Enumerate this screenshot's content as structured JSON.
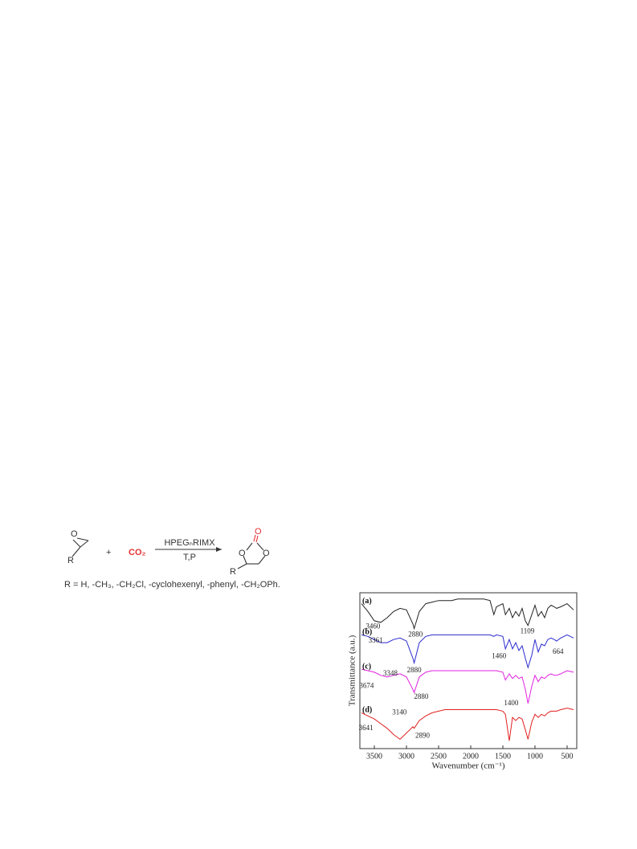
{
  "scheme": {
    "reactant_atoms": [
      "O",
      "R"
    ],
    "plus": "+",
    "co2": "CO₂",
    "reagent": "HPEGₙRIMX",
    "conditions": "T,P",
    "product_atoms": [
      "O",
      "O",
      "O",
      "R"
    ],
    "r_groups": "R = H, -CH₃, -CH₂Cl, -cyclohexenyl, -phenyl, -CH₂OPh."
  },
  "chart_data": {
    "type": "line",
    "xlabel": "Wavenumber (cm⁻¹)",
    "ylabel": "Transmittance (a.u.)",
    "x": [
      3700,
      3600,
      3500,
      3400,
      3300,
      3200,
      3100,
      3000,
      2900,
      2880,
      2800,
      2700,
      2600,
      2500,
      2400,
      2300,
      2200,
      2100,
      2000,
      1900,
      1800,
      1700,
      1640,
      1600,
      1500,
      1460,
      1400,
      1350,
      1300,
      1250,
      1200,
      1150,
      1109,
      1050,
      1000,
      950,
      900,
      850,
      800,
      750,
      700,
      664,
      600,
      500,
      400
    ],
    "xlim": [
      3725,
      350
    ],
    "xticks": [
      3500,
      3000,
      2500,
      2000,
      1500,
      1000,
      500
    ],
    "ylim": [
      0,
      100
    ],
    "series": [
      {
        "name": "(a)",
        "color": "#222222",
        "values": [
          93,
          88,
          82,
          81,
          84,
          88,
          90,
          89,
          80,
          77,
          88,
          93,
          94,
          95,
          95,
          95,
          96,
          96,
          96,
          96,
          96,
          95,
          86,
          91,
          93,
          86,
          90,
          84,
          88,
          85,
          90,
          82,
          79,
          86,
          92,
          85,
          88,
          84,
          90,
          92,
          91,
          90,
          91,
          93,
          89
        ]
      },
      {
        "name": "(b)",
        "color": "#2a2ad0",
        "values": [
          73,
          72,
          70,
          68,
          68,
          70,
          71,
          69,
          58,
          55,
          68,
          72,
          73,
          73,
          73,
          73,
          73,
          73,
          73,
          73,
          73,
          73,
          72,
          73,
          72,
          64,
          70,
          64,
          68,
          63,
          66,
          58,
          52,
          60,
          70,
          62,
          67,
          66,
          70,
          71,
          70,
          69,
          71,
          73,
          71
        ]
      },
      {
        "name": "(c)",
        "color": "#e020e0",
        "values": [
          51,
          50,
          49,
          47,
          46,
          47,
          48,
          46,
          38,
          36,
          46,
          49,
          50,
          50,
          50,
          50,
          50,
          50,
          50,
          50,
          50,
          50,
          50,
          50,
          49,
          44,
          48,
          45,
          47,
          45,
          46,
          38,
          29,
          40,
          47,
          43,
          46,
          45,
          47,
          48,
          47,
          47,
          48,
          50,
          49
        ]
      },
      {
        "name": "(d)",
        "color": "#e02020",
        "values": [
          23,
          21,
          19,
          16,
          13,
          9,
          6,
          10,
          14,
          13,
          18,
          21,
          23,
          24,
          25,
          25,
          25,
          25,
          25,
          25,
          25,
          25,
          25,
          25,
          24,
          22,
          5,
          20,
          18,
          20,
          19,
          12,
          6,
          17,
          22,
          20,
          22,
          21,
          23,
          24,
          24,
          24,
          25,
          26,
          25
        ]
      }
    ],
    "annotations": [
      {
        "text": "3460",
        "x": 3520,
        "y": 78
      },
      {
        "text": "2880",
        "x": 2860,
        "y": 73
      },
      {
        "text": "1109",
        "x": 1120,
        "y": 75
      },
      {
        "text": "3361",
        "x": 3480,
        "y": 69
      },
      {
        "text": "2880",
        "x": 2880,
        "y": 50
      },
      {
        "text": "1460",
        "x": 1560,
        "y": 59
      },
      {
        "text": "664",
        "x": 640,
        "y": 62
      },
      {
        "text": "3348",
        "x": 3250,
        "y": 48
      },
      {
        "text": "3674",
        "x": 3620,
        "y": 40
      },
      {
        "text": "2880",
        "x": 2770,
        "y": 33
      },
      {
        "text": "3140",
        "x": 3110,
        "y": 23
      },
      {
        "text": "1400",
        "x": 1370,
        "y": 29
      },
      {
        "text": "3641",
        "x": 3630,
        "y": 13
      },
      {
        "text": "2890",
        "x": 2750,
        "y": 8
      }
    ]
  }
}
